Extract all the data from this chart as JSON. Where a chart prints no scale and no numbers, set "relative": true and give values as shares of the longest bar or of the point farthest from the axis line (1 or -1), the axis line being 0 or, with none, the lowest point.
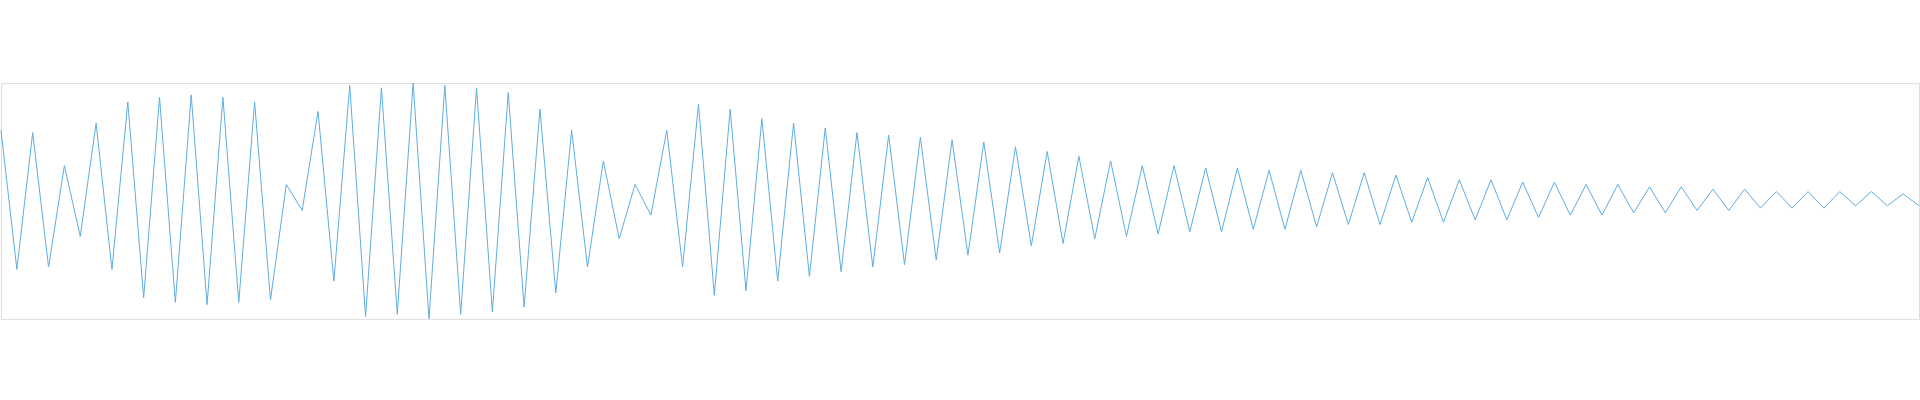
{
  "chart_data": {
    "type": "line",
    "relative": true,
    "grid": false,
    "legend": false,
    "tick_labels": false,
    "marker": "none",
    "line_style": "solid",
    "categories": [
      null,
      null,
      null,
      null,
      null,
      null,
      null,
      null,
      null,
      null,
      null,
      null,
      null,
      null,
      null,
      null,
      null,
      null,
      null,
      null,
      null,
      null,
      null,
      null,
      null,
      null,
      null,
      null,
      null,
      null,
      null,
      null,
      null,
      null,
      null,
      null,
      null,
      null,
      null,
      null,
      null,
      null,
      null,
      null,
      null,
      null,
      null,
      null,
      null,
      null,
      null,
      null,
      null,
      null,
      null,
      null,
      null,
      null,
      null,
      null,
      null,
      null,
      null,
      null,
      null,
      null,
      null,
      null,
      null,
      null,
      null,
      null,
      null,
      null,
      null,
      null,
      null,
      null,
      null,
      null,
      null,
      null,
      null,
      null,
      null,
      null,
      null,
      null,
      null,
      null,
      null,
      null,
      null,
      null,
      null,
      null,
      null,
      null,
      null,
      null,
      null,
      null,
      null,
      null,
      null,
      null,
      null,
      null,
      null,
      null,
      null,
      null,
      null,
      null,
      null,
      null,
      null,
      null,
      null,
      null,
      null,
      null
    ],
    "series": [
      {
        "color": "#5dade2",
        "values": [
          0.8,
          0.21,
          0.79,
          0.22,
          0.65,
          0.35,
          0.83,
          0.21,
          0.92,
          0.09,
          0.94,
          0.07,
          0.95,
          0.06,
          0.94,
          0.07,
          0.92,
          0.08,
          0.57,
          0.46,
          0.88,
          0.16,
          0.99,
          0.01,
          0.98,
          0.02,
          1.0,
          0.0,
          0.99,
          0.02,
          0.98,
          0.03,
          0.96,
          0.05,
          0.89,
          0.11,
          0.8,
          0.22,
          0.67,
          0.34,
          0.57,
          0.44,
          0.8,
          0.22,
          0.91,
          0.1,
          0.89,
          0.12,
          0.85,
          0.16,
          0.83,
          0.18,
          0.81,
          0.2,
          0.79,
          0.22,
          0.78,
          0.23,
          0.77,
          0.25,
          0.76,
          0.27,
          0.75,
          0.28,
          0.73,
          0.31,
          0.71,
          0.32,
          0.69,
          0.34,
          0.67,
          0.35,
          0.65,
          0.36,
          0.65,
          0.37,
          0.64,
          0.37,
          0.64,
          0.38,
          0.63,
          0.38,
          0.63,
          0.39,
          0.62,
          0.4,
          0.62,
          0.4,
          0.61,
          0.41,
          0.6,
          0.41,
          0.59,
          0.42,
          0.59,
          0.42,
          0.58,
          0.43,
          0.58,
          0.44,
          0.57,
          0.44,
          0.57,
          0.45,
          0.56,
          0.45,
          0.56,
          0.46,
          0.55,
          0.46,
          0.55,
          0.47,
          0.54,
          0.47,
          0.54,
          0.47,
          0.54,
          0.48,
          0.54,
          0.48,
          0.53,
          0.48
        ]
      }
    ]
  }
}
